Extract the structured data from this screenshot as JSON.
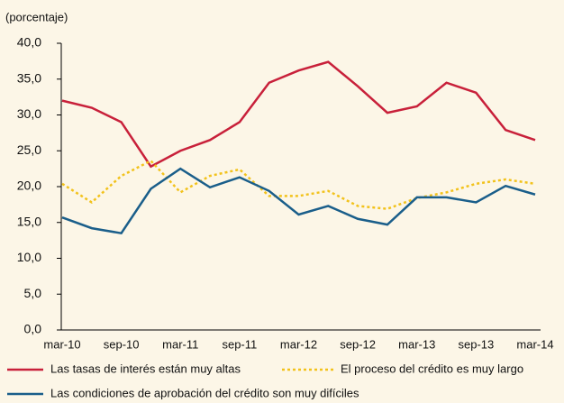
{
  "chart_data": {
    "type": "line",
    "y_label": "(porcentaje)",
    "categories": [
      "mar-10",
      null,
      "sep-10",
      null,
      "mar-11",
      null,
      "sep-11",
      null,
      "mar-12",
      null,
      "sep-12",
      null,
      "mar-13",
      null,
      "sep-13",
      null,
      "mar-14"
    ],
    "ylim": [
      0,
      40
    ],
    "yticks": [
      {
        "value": 0,
        "label": "0,0"
      },
      {
        "value": 5,
        "label": "5,0"
      },
      {
        "value": 10,
        "label": "10,0"
      },
      {
        "value": 15,
        "label": "15,0"
      },
      {
        "value": 20,
        "label": "20,0"
      },
      {
        "value": 25,
        "label": "25,0"
      },
      {
        "value": 30,
        "label": "30,0"
      },
      {
        "value": 35,
        "label": "35,0"
      },
      {
        "value": 40,
        "label": "40,0"
      }
    ],
    "series": [
      {
        "name": "Las tasas de interés están muy altas",
        "color": "#c8203a",
        "style": "solid",
        "values": [
          32.0,
          31.0,
          29.0,
          22.8,
          25.0,
          26.5,
          29.0,
          34.5,
          36.2,
          37.4,
          34.0,
          30.3,
          31.2,
          34.5,
          33.1,
          27.9,
          26.5
        ]
      },
      {
        "name": "El proceso del crédito es muy largo",
        "color": "#f2c21b",
        "style": "dotted",
        "values": [
          20.4,
          17.8,
          21.5,
          23.6,
          19.2,
          21.5,
          22.4,
          18.7,
          18.7,
          19.4,
          17.3,
          16.9,
          18.4,
          19.2,
          20.4,
          21.0,
          20.4
        ]
      },
      {
        "name": "Las condiciones de aprobación del crédito son muy difíciles",
        "color": "#1a5e8a",
        "style": "solid",
        "values": [
          15.7,
          14.2,
          13.5,
          19.7,
          22.5,
          19.9,
          21.3,
          19.4,
          16.1,
          17.3,
          15.5,
          14.7,
          18.5,
          18.5,
          17.8,
          20.1,
          18.9
        ]
      }
    ]
  }
}
